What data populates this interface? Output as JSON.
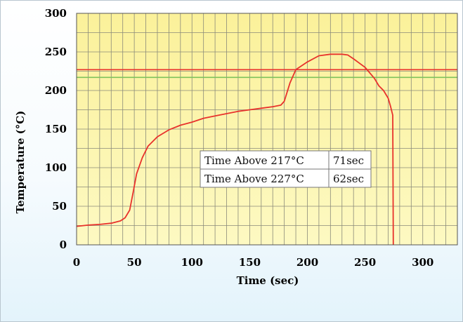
{
  "chart_data": {
    "type": "line",
    "title": "",
    "xlabel": "Time (sec)",
    "ylabel": "Temperature (°C)",
    "xlim": [
      0,
      330
    ],
    "ylim": [
      0,
      300
    ],
    "x_ticks": [
      "0",
      "50",
      "100",
      "150",
      "200",
      "250",
      "300"
    ],
    "y_ticks": [
      "0",
      "50",
      "100",
      "150",
      "200",
      "250",
      "300"
    ],
    "grid": true,
    "colors": {
      "curve": "#e8322c",
      "threshold_227": "#e8322c",
      "threshold_217": "#7fc25b",
      "plot_bg": "#fbf6a8"
    },
    "series": [
      {
        "x": [
          0,
          10,
          20,
          30,
          38,
          42,
          46,
          49,
          52,
          57,
          62,
          70,
          80,
          90,
          100,
          110,
          120,
          130,
          140,
          150,
          160,
          170,
          177,
          180,
          185,
          190,
          200,
          210,
          220,
          230,
          235,
          240,
          250,
          258,
          262,
          266,
          270,
          272,
          274,
          274.5
        ],
        "y": [
          24,
          25.5,
          26.5,
          28,
          31,
          35,
          45,
          68,
          92,
          113,
          128,
          140,
          149,
          155,
          159,
          164,
          167,
          170,
          173,
          175,
          177,
          179,
          181,
          186,
          210,
          227,
          237,
          245,
          247,
          247,
          246,
          241,
          230,
          216,
          206,
          200,
          190,
          180,
          168,
          0
        ]
      }
    ],
    "reference_lines": [
      {
        "y": 227,
        "color": "#e8322c"
      },
      {
        "y": 217,
        "color": "#7fc25b"
      }
    ],
    "annotation_table": [
      {
        "label": "Time Above 217°C",
        "value": "71sec"
      },
      {
        "label": "Time Above 227°C",
        "value": "62sec"
      }
    ]
  }
}
